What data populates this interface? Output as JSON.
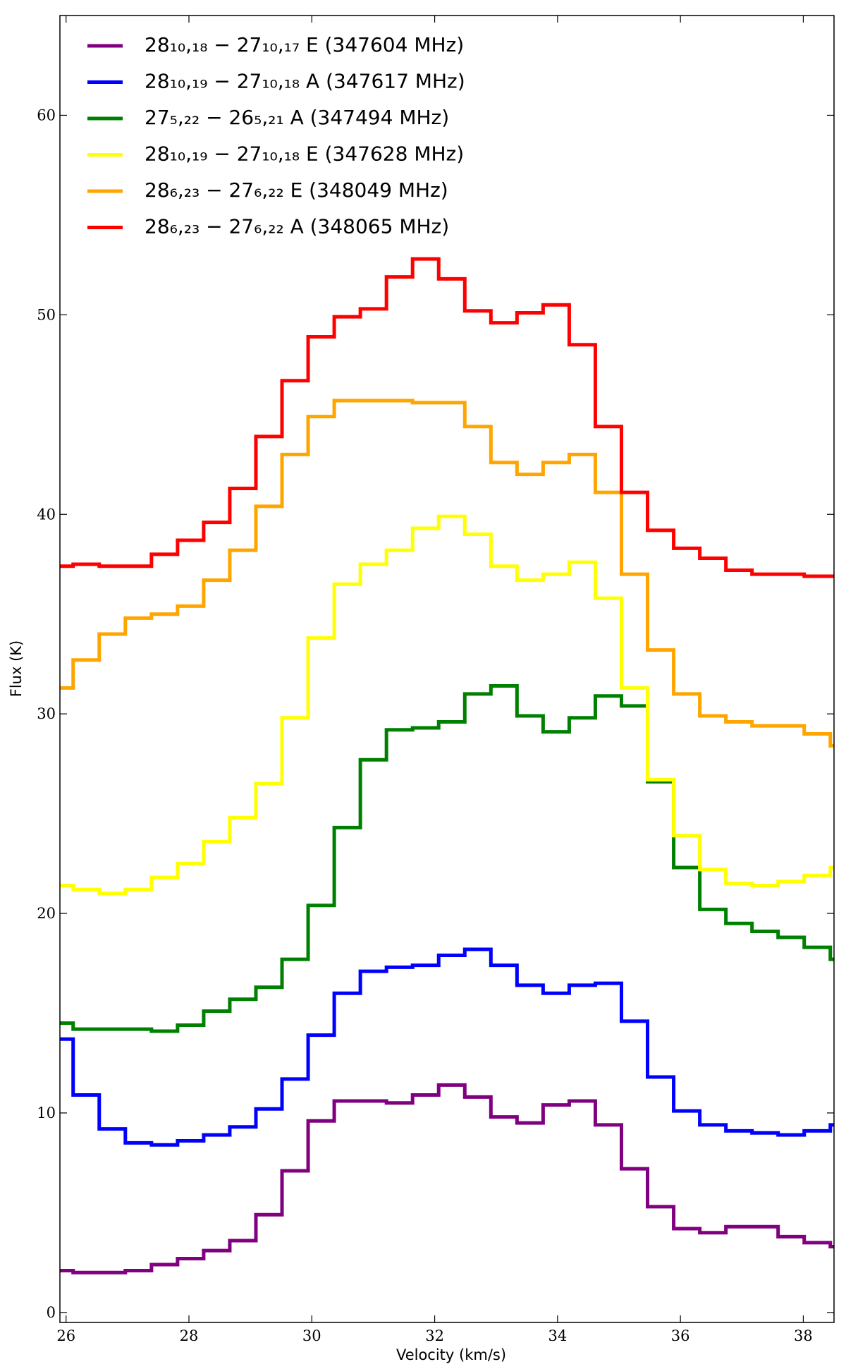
{
  "chart_data": {
    "type": "step",
    "xlabel": "Velocity (km/s)",
    "ylabel": "Flux (K)",
    "xlim": [
      25.9,
      38.5
    ],
    "ylim": [
      -0.5,
      65
    ],
    "xticks": [
      26,
      28,
      30,
      32,
      34,
      36,
      38
    ],
    "yticks": [
      0,
      10,
      20,
      30,
      40,
      50,
      60
    ],
    "grid": false,
    "legend": "upper left",
    "x": [
      25.9,
      26.33,
      26.75,
      27.18,
      27.6,
      28.03,
      28.45,
      28.88,
      29.3,
      29.73,
      30.15,
      30.58,
      31.0,
      31.43,
      31.85,
      32.28,
      32.7,
      33.13,
      33.55,
      33.98,
      34.4,
      34.83,
      35.25,
      35.68,
      36.1,
      36.53,
      36.95,
      37.38,
      37.8,
      38.23,
      38.65
    ],
    "series": [
      {
        "name": "28₁₀,₁₈ − 27₁₀,₁₇ E (347604 MHz)",
        "color": "#800080",
        "values": [
          2.1,
          2.0,
          2.0,
          2.1,
          2.4,
          2.7,
          3.1,
          3.6,
          4.9,
          7.1,
          9.6,
          10.6,
          10.6,
          10.5,
          10.9,
          11.4,
          10.8,
          9.8,
          9.5,
          10.4,
          10.6,
          9.4,
          7.2,
          5.3,
          4.2,
          4.0,
          4.3,
          4.3,
          3.8,
          3.5,
          3.3
        ]
      },
      {
        "name": "28₁₀,₁₉ − 27₁₀,₁₈ A (347617 MHz)",
        "color": "#0000ff",
        "values": [
          13.7,
          10.9,
          9.2,
          8.5,
          8.4,
          8.6,
          8.9,
          9.3,
          10.2,
          11.7,
          13.9,
          16.0,
          17.1,
          17.3,
          17.4,
          17.9,
          18.2,
          17.4,
          16.4,
          16.0,
          16.4,
          16.5,
          14.6,
          11.8,
          10.1,
          9.4,
          9.1,
          9.0,
          8.9,
          9.1,
          9.4
        ]
      },
      {
        "name": "27₅,₂₂ − 26₅,₂₁ A (347494 MHz)",
        "color": "#008000",
        "values": [
          14.5,
          14.2,
          14.2,
          14.2,
          14.1,
          14.4,
          15.1,
          15.7,
          16.3,
          17.7,
          20.4,
          24.3,
          27.7,
          29.2,
          29.3,
          29.6,
          31.0,
          31.4,
          29.9,
          29.1,
          29.8,
          30.9,
          30.4,
          26.6,
          22.3,
          20.2,
          19.5,
          19.1,
          18.8,
          18.3,
          17.7
        ]
      },
      {
        "name": "28₁₀,₁₉ − 27₁₀,₁₈ E (347628 MHz)",
        "color": "#ffff00",
        "values": [
          21.4,
          21.2,
          21.0,
          21.2,
          21.8,
          22.5,
          23.6,
          24.8,
          26.5,
          29.8,
          33.8,
          36.5,
          37.5,
          38.2,
          39.3,
          39.9,
          39.0,
          37.4,
          36.7,
          37.0,
          37.6,
          35.8,
          31.3,
          26.7,
          23.9,
          22.2,
          21.5,
          21.4,
          21.6,
          21.9,
          22.3
        ]
      },
      {
        "name": "28₆,₂₃ − 27₆,₂₂ E (348049 MHz)",
        "color": "#ffa500",
        "values": [
          31.3,
          32.7,
          34.0,
          34.8,
          35.0,
          35.4,
          36.7,
          38.2,
          40.4,
          43.0,
          44.9,
          45.7,
          45.7,
          45.7,
          45.6,
          45.6,
          44.4,
          42.6,
          42.0,
          42.6,
          43.0,
          41.1,
          37.0,
          33.2,
          31.0,
          29.9,
          29.6,
          29.4,
          29.4,
          29.0,
          28.4
        ]
      },
      {
        "name": "28₆,₂₃ − 27₆,₂₂ A (348065 MHz)",
        "color": "#ff0000",
        "values": [
          37.4,
          37.5,
          37.4,
          37.4,
          38.0,
          38.7,
          39.6,
          41.3,
          43.9,
          46.7,
          48.9,
          49.9,
          50.3,
          51.9,
          52.8,
          51.8,
          50.2,
          49.6,
          50.1,
          50.5,
          48.5,
          44.4,
          41.1,
          39.2,
          38.3,
          37.8,
          37.2,
          37.0,
          37.0,
          36.9,
          36.9
        ]
      }
    ]
  }
}
